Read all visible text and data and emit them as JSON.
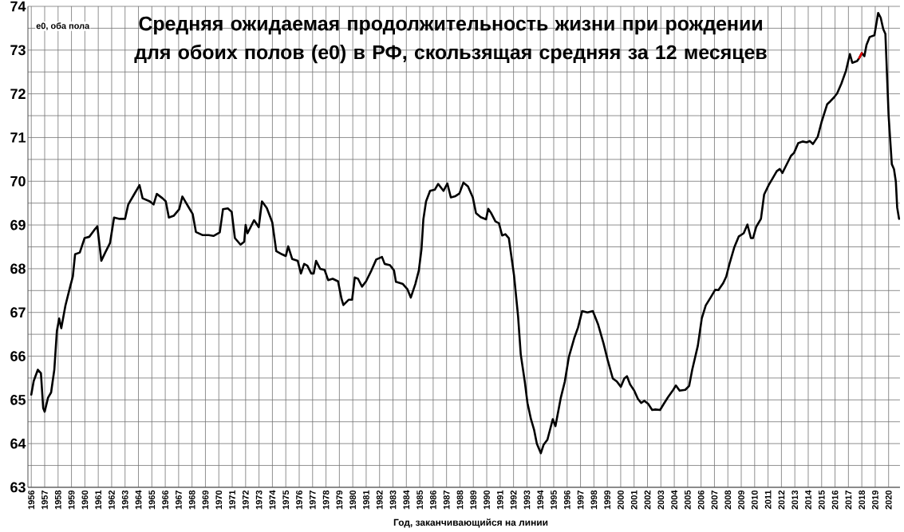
{
  "chart_data": {
    "type": "line",
    "title": "Средняя ожидаемая продолжительность жизни при рождении для обоих полов (e0) в РФ, скользящая средняя за 12 месяцев",
    "xlabel": "Год, заканчивающийся на линии",
    "ylabel": "e0, оба пола",
    "xlim": [
      1955.75,
      2020.85
    ],
    "ylim": [
      63,
      74
    ],
    "xticks": [
      1956,
      1957,
      1958,
      1959,
      1960,
      1961,
      1962,
      1963,
      1964,
      1965,
      1966,
      1967,
      1968,
      1969,
      1970,
      1971,
      1972,
      1973,
      1974,
      1975,
      1976,
      1977,
      1978,
      1979,
      1980,
      1981,
      1982,
      1983,
      1984,
      1985,
      1986,
      1987,
      1988,
      1989,
      1990,
      1991,
      1992,
      1993,
      1994,
      1995,
      1996,
      1997,
      1998,
      1999,
      2000,
      2001,
      2002,
      2003,
      2004,
      2005,
      2006,
      2007,
      2008,
      2009,
      2010,
      2011,
      2012,
      2013,
      2014,
      2015,
      2016,
      2017,
      2018,
      2019,
      2020
    ],
    "yticks": [
      63,
      {
        "value": 63.5,
        "label": null
      },
      64,
      {
        "value": 64.5,
        "label": null
      },
      65,
      {
        "value": 65.5,
        "label": null
      },
      66,
      {
        "value": 66.5,
        "label": null
      },
      67,
      {
        "value": 67.5,
        "label": null
      },
      68,
      {
        "value": 68.5,
        "label": null
      },
      69,
      {
        "value": 69.5,
        "label": null
      },
      70,
      {
        "value": 70.5,
        "label": null
      },
      71,
      {
        "value": 71.5,
        "label": null
      },
      72,
      {
        "value": 72.5,
        "label": null
      },
      73,
      {
        "value": 73.5,
        "label": null
      },
      74
    ],
    "grid": true,
    "series": [
      {
        "color": "#000000",
        "x": [
          1956.0,
          1956.18,
          1956.49,
          1956.72,
          1956.89,
          1957.0,
          1957.25,
          1957.48,
          1957.72,
          1957.91,
          1958.08,
          1958.24,
          1958.55,
          1958.91,
          1959.1,
          1959.27,
          1959.62,
          1959.98,
          1960.33,
          1960.69,
          1960.93,
          1961.23,
          1961.52,
          1961.88,
          1962.18,
          1962.59,
          1963.0,
          1963.24,
          1963.66,
          1964.08,
          1964.31,
          1964.85,
          1965.13,
          1965.37,
          1965.8,
          1966.04,
          1966.27,
          1966.63,
          1967.04,
          1967.28,
          1967.7,
          1968.05,
          1968.29,
          1968.77,
          1969.24,
          1969.6,
          1970.07,
          1970.31,
          1970.67,
          1970.96,
          1971.2,
          1971.62,
          1971.9,
          1972.0,
          1972.14,
          1972.63,
          1972.98,
          1973.22,
          1973.58,
          1973.99,
          1974.29,
          1974.71,
          1975.0,
          1975.18,
          1975.48,
          1975.89,
          1976.13,
          1976.37,
          1976.61,
          1976.9,
          1977.08,
          1977.26,
          1977.56,
          1977.9,
          1978.16,
          1978.5,
          1978.9,
          1979.16,
          1979.3,
          1979.69,
          1979.95,
          1980.15,
          1980.39,
          1980.69,
          1980.99,
          1981.39,
          1981.75,
          1982.18,
          1982.38,
          1982.78,
          1983.08,
          1983.22,
          1983.74,
          1984.08,
          1984.33,
          1984.67,
          1984.93,
          1985.13,
          1985.27,
          1985.47,
          1985.77,
          1986.13,
          1986.37,
          1986.77,
          1987.06,
          1987.32,
          1987.66,
          1987.96,
          1988.26,
          1988.6,
          1988.96,
          1989.2,
          1989.55,
          1989.95,
          1990.11,
          1990.35,
          1990.65,
          1990.91,
          1991.15,
          1991.39,
          1991.65,
          1992.04,
          1992.34,
          1992.54,
          1992.84,
          1993.04,
          1993.3,
          1993.54,
          1993.74,
          1994.04,
          1994.24,
          1994.53,
          1994.93,
          1995.13,
          1995.53,
          1995.83,
          1996.13,
          1996.53,
          1996.82,
          1997.12,
          1997.52,
          1997.92,
          1998.32,
          1998.72,
          1999.02,
          1999.41,
          1999.71,
          2000.01,
          2000.27,
          2000.47,
          2000.71,
          2001.01,
          2001.29,
          2001.53,
          2001.76,
          2002.05,
          2002.35,
          2002.59,
          2002.94,
          2003.22,
          2003.53,
          2003.88,
          2004.12,
          2004.4,
          2004.82,
          2005.11,
          2005.34,
          2005.76,
          2006.05,
          2006.35,
          2006.71,
          2007.06,
          2007.29,
          2007.65,
          2007.88,
          2008.12,
          2008.47,
          2008.82,
          2009.18,
          2009.46,
          2009.72,
          2009.88,
          2010.12,
          2010.47,
          2010.71,
          2011.06,
          2011.29,
          2011.65,
          2011.88,
          2012.07,
          2012.35,
          2012.71,
          2012.94,
          2013.25,
          2013.58,
          2013.88,
          2014.12,
          2014.35,
          2014.71,
          2014.99,
          2015.41,
          2015.65,
          2015.93,
          2016.16,
          2016.47,
          2016.82,
          2017.11,
          2017.29,
          2017.65,
          2017.81,
          2018.0,
          2018.19,
          2018.35,
          2018.59,
          2018.94,
          2019.22,
          2019.41,
          2019.6,
          2019.76,
          2020.0,
          2020.24,
          2020.4,
          2020.54,
          2020.64,
          2020.78
        ],
        "values": [
          65.12,
          65.43,
          65.69,
          65.61,
          64.81,
          64.73,
          65.05,
          65.17,
          65.69,
          66.57,
          66.86,
          66.64,
          67.16,
          67.6,
          67.82,
          68.33,
          68.37,
          68.7,
          68.73,
          68.88,
          68.97,
          68.18,
          68.37,
          68.59,
          69.17,
          69.14,
          69.14,
          69.47,
          69.69,
          69.91,
          69.61,
          69.54,
          69.47,
          69.71,
          69.61,
          69.54,
          69.17,
          69.21,
          69.36,
          69.65,
          69.43,
          69.25,
          68.84,
          68.77,
          68.77,
          68.75,
          68.83,
          69.36,
          69.38,
          69.3,
          68.7,
          68.55,
          68.62,
          69.0,
          68.81,
          69.11,
          68.95,
          69.54,
          69.39,
          69.06,
          68.4,
          68.33,
          68.29,
          68.51,
          68.22,
          68.18,
          67.89,
          68.11,
          68.07,
          67.89,
          67.89,
          68.18,
          68.0,
          67.97,
          67.74,
          67.77,
          67.71,
          67.31,
          67.17,
          67.29,
          67.29,
          67.8,
          67.77,
          67.59,
          67.71,
          67.96,
          68.21,
          68.27,
          68.11,
          68.08,
          67.96,
          67.7,
          67.65,
          67.53,
          67.34,
          67.65,
          67.96,
          68.45,
          69.13,
          69.54,
          69.78,
          69.81,
          69.94,
          69.78,
          69.95,
          69.63,
          69.66,
          69.72,
          69.97,
          69.88,
          69.63,
          69.27,
          69.18,
          69.13,
          69.37,
          69.26,
          69.08,
          69.04,
          68.76,
          68.79,
          68.7,
          67.84,
          66.91,
          66.04,
          65.42,
          64.93,
          64.56,
          64.31,
          64.0,
          63.78,
          63.97,
          64.09,
          64.56,
          64.4,
          65.05,
          65.42,
          65.98,
          66.41,
          66.66,
          67.03,
          67.0,
          67.03,
          66.72,
          66.29,
          65.92,
          65.49,
          65.42,
          65.3,
          65.49,
          65.54,
          65.35,
          65.21,
          65.02,
          64.93,
          64.98,
          64.91,
          64.77,
          64.78,
          64.77,
          64.91,
          65.06,
          65.21,
          65.33,
          65.21,
          65.23,
          65.32,
          65.69,
          66.24,
          66.86,
          67.16,
          67.34,
          67.52,
          67.51,
          67.67,
          67.82,
          68.11,
          68.48,
          68.74,
          68.81,
          69.01,
          68.7,
          68.7,
          68.96,
          69.14,
          69.7,
          69.92,
          70.04,
          70.23,
          70.28,
          70.19,
          70.36,
          70.58,
          70.65,
          70.87,
          70.91,
          70.89,
          70.92,
          70.85,
          71.02,
          71.35,
          71.76,
          71.83,
          71.92,
          72.01,
          72.23,
          72.53,
          72.91,
          72.71,
          72.75,
          72.82,
          72.93,
          72.86,
          73.12,
          73.3,
          73.34,
          73.85,
          73.74,
          73.48,
          73.37,
          71.5,
          70.39,
          70.28,
          69.99,
          69.4,
          69.14
        ]
      },
      {
        "color": "#e00000",
        "x": [
          2017.81,
          2018.0
        ],
        "values": [
          72.82,
          72.93
        ]
      }
    ]
  }
}
